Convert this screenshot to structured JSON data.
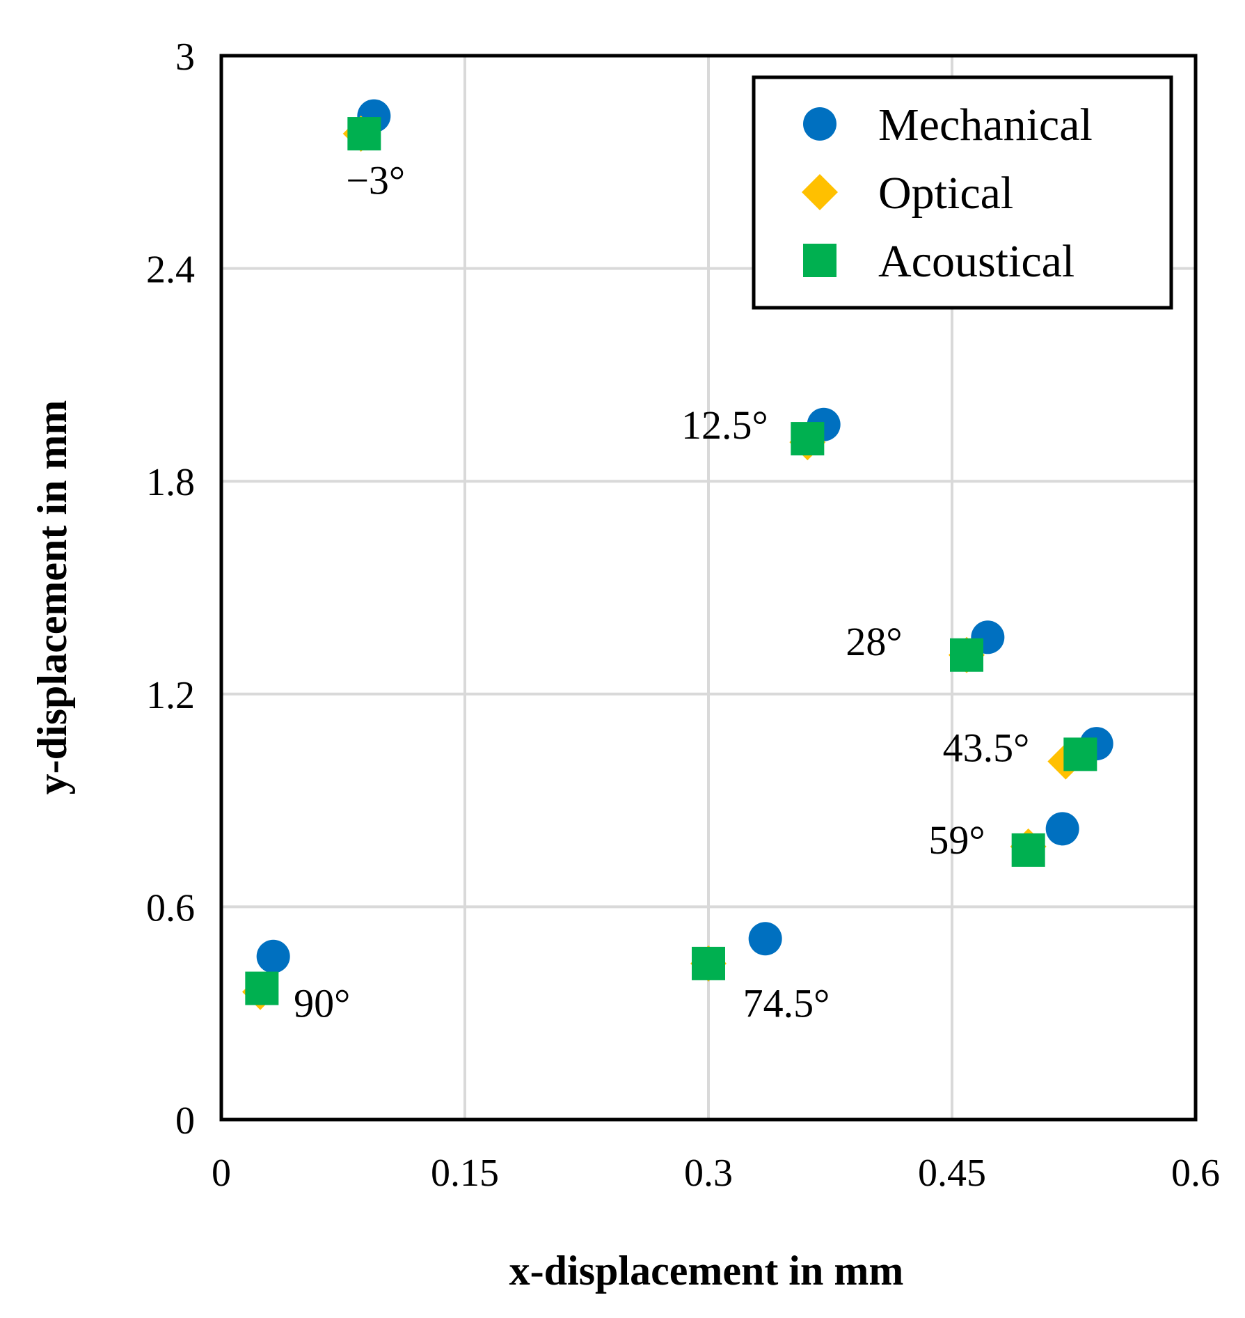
{
  "chart_data": {
    "type": "scatter",
    "title": "",
    "xlabel": "x-displacement in mm",
    "ylabel": "y-displacement in mm",
    "xlim": [
      0,
      0.6
    ],
    "ylim": [
      0,
      3
    ],
    "xticks": [
      0,
      0.15,
      0.3,
      0.45,
      0.6
    ],
    "xtick_labels": [
      "0",
      "0.15",
      "0.3",
      "0.45",
      "0.6"
    ],
    "yticks": [
      0,
      0.6,
      1.2,
      1.8,
      2.4,
      3
    ],
    "ytick_labels": [
      "0",
      "0.6",
      "1.2",
      "1.8",
      "2.4",
      "3"
    ],
    "grid": true,
    "legend_position": "top-right",
    "series": [
      {
        "name": "Mechanical",
        "marker": "circle",
        "color": "#0070C0",
        "x": [
          0.094,
          0.371,
          0.472,
          0.539,
          0.518,
          0.335,
          0.032
        ],
        "y": [
          2.83,
          1.96,
          1.36,
          1.06,
          0.82,
          0.51,
          0.46
        ]
      },
      {
        "name": "Optical",
        "marker": "diamond",
        "color": "#FFC000",
        "x": [
          0.086,
          0.361,
          0.459,
          0.52,
          0.497,
          0.3,
          0.024
        ],
        "y": [
          2.78,
          1.91,
          1.31,
          1.01,
          0.77,
          0.44,
          0.36
        ]
      },
      {
        "name": "Acoustical",
        "marker": "square",
        "color": "#00B050",
        "x": [
          0.088,
          0.361,
          0.459,
          0.529,
          0.497,
          0.3,
          0.025
        ],
        "y": [
          2.78,
          1.92,
          1.31,
          1.03,
          0.76,
          0.44,
          0.37
        ]
      }
    ],
    "annotations": [
      {
        "text": "−3°",
        "x": 0.095,
        "y": 2.61
      },
      {
        "text": "12.5°",
        "x": 0.31,
        "y": 1.92
      },
      {
        "text": "28°",
        "x": 0.402,
        "y": 1.31
      },
      {
        "text": "43.5°",
        "x": 0.471,
        "y": 1.01
      },
      {
        "text": "59°",
        "x": 0.453,
        "y": 0.75
      },
      {
        "text": "74.5°",
        "x": 0.348,
        "y": 0.29
      },
      {
        "text": "90°",
        "x": 0.062,
        "y": 0.29
      }
    ]
  }
}
